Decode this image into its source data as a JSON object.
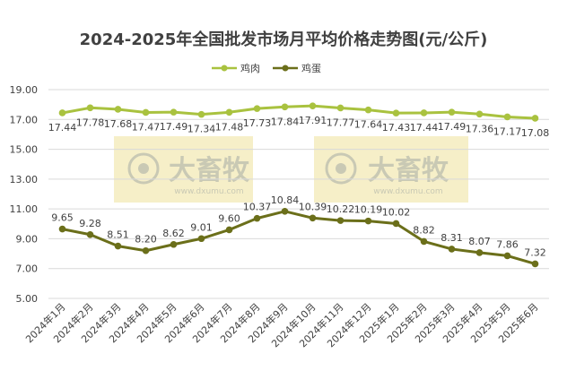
{
  "colors": {
    "chicken": "#a9c23f",
    "egg": "#6b6f1a",
    "grid": "#d9d9d9",
    "text": "#404040",
    "title": "#404040",
    "watermark_bg": "#f6efc8",
    "watermark_fg": "#c9c9b4"
  },
  "watermark": {
    "logo_text": "大畜牧",
    "url": "www.dxumu.com"
  },
  "chart_data": {
    "type": "line",
    "title": "2024-2025年全国批发市场月平均价格走势图(元/公斤)",
    "xlabel": "",
    "ylabel": "",
    "ylim": [
      5,
      19
    ],
    "yticks": [
      "5.00",
      "7.00",
      "9.00",
      "11.00",
      "13.00",
      "15.00",
      "17.00",
      "19.00"
    ],
    "grid": true,
    "legend_position": "top",
    "categories": [
      "2024年1月",
      "2024年2月",
      "2024年3月",
      "2024年4月",
      "2024年5月",
      "2024年6月",
      "2024年7月",
      "2024年8月",
      "2024年9月",
      "2024年10月",
      "2024年11月",
      "2024年12月",
      "2025年1月",
      "2025年2月",
      "2025年3月",
      "2025年4月",
      "2025年5月",
      "2025年6月"
    ],
    "series": [
      {
        "name": "鸡肉",
        "color": "#a9c23f",
        "values": [
          17.44,
          17.78,
          17.68,
          17.47,
          17.49,
          17.34,
          17.48,
          17.73,
          17.84,
          17.91,
          17.77,
          17.64,
          17.43,
          17.44,
          17.49,
          17.36,
          17.17,
          17.08
        ],
        "labels": [
          "17.44",
          "17.78",
          "17.68",
          "17.47",
          "17.49",
          "17.34",
          "17.48",
          "17.73",
          "17.84",
          "17.91",
          "17.77",
          "17.64",
          "17.43",
          "17.44",
          "17.49",
          "17.36",
          "17.17",
          "17.08"
        ]
      },
      {
        "name": "鸡蛋",
        "color": "#6b6f1a",
        "values": [
          9.65,
          9.28,
          8.51,
          8.2,
          8.62,
          9.01,
          9.6,
          10.37,
          10.84,
          10.39,
          10.22,
          10.19,
          10.02,
          8.82,
          8.31,
          8.07,
          7.86,
          7.32
        ],
        "labels": [
          "9.65",
          "9.28",
          "8.51",
          "8.20",
          "8.62",
          "9.01",
          "9.60",
          "10.37",
          "10.84",
          "10.39",
          "10.22",
          "10.19",
          "10.02",
          "8.82",
          "8.31",
          "8.07",
          "7.86",
          "7.32"
        ]
      }
    ]
  }
}
